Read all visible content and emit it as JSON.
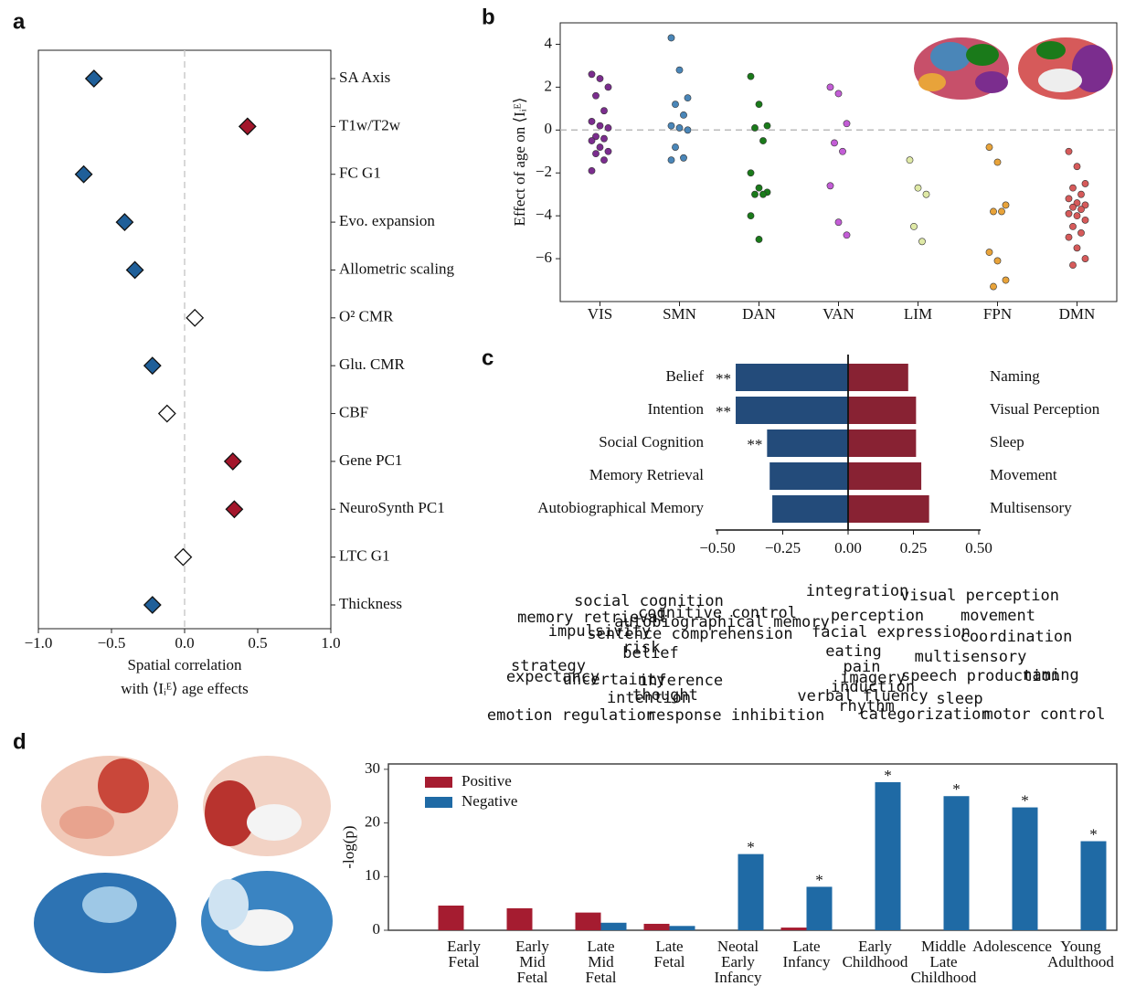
{
  "chart_data": [
    {
      "type": "scatter",
      "panel": "a",
      "categories": [
        "SA Axis",
        "T1w/T2w",
        "FC G1",
        "Evo. expansion",
        "Allometric scaling",
        "O² CMR",
        "Glu. CMR",
        "CBF",
        "Gene PC1",
        "NeuroSynth PC1",
        "LTC G1",
        "Thickness"
      ],
      "values": [
        -0.62,
        0.43,
        -0.69,
        -0.41,
        -0.34,
        0.07,
        -0.22,
        -0.12,
        0.33,
        0.34,
        -0.01,
        -0.22
      ],
      "colors": [
        "#1f5f99",
        "#a3162b",
        "#1f5f99",
        "#1f5f99",
        "#1f5f99",
        "#ffffff",
        "#1f5f99",
        "#ffffff",
        "#a3162b",
        "#a3162b",
        "#ffffff",
        "#1f5f99"
      ],
      "xlim": [
        -1,
        1
      ],
      "xticks": [
        {
          "value": -1,
          "label": "−1.0"
        },
        {
          "value": -0.5,
          "label": "−0.5"
        },
        {
          "value": 0,
          "label": "0.0"
        },
        {
          "value": 0.5,
          "label": "0.5"
        },
        {
          "value": 1,
          "label": "1.0"
        }
      ],
      "xlabel": [
        "Spatial correlation",
        "with ⟨Iᵢᴱ⟩ age effects"
      ]
    },
    {
      "type": "strip",
      "panel": "b",
      "groups": [
        {
          "name": "VIS",
          "color": "#7b2d8e",
          "values": [
            2.6,
            2.4,
            2.0,
            1.6,
            0.9,
            0.4,
            0.2,
            0.1,
            -0.3,
            -0.4,
            -0.5,
            -0.8,
            -1.0,
            -1.1,
            -1.4,
            -1.9
          ]
        },
        {
          "name": "SMN",
          "color": "#4a86b8",
          "values": [
            4.3,
            2.8,
            1.5,
            1.2,
            0.7,
            0.2,
            0.1,
            0.0,
            -0.8,
            -1.3,
            -1.4
          ]
        },
        {
          "name": "DAN",
          "color": "#1a7a1a",
          "values": [
            2.5,
            1.2,
            0.2,
            0.1,
            -0.5,
            -2.0,
            -2.7,
            -2.9,
            -3.0,
            -3.0,
            -4.0,
            -5.1
          ]
        },
        {
          "name": "VAN",
          "color": "#c35dd6",
          "values": [
            2.0,
            1.7,
            0.3,
            -0.6,
            -1.0,
            -2.6,
            -4.3,
            -4.9
          ]
        },
        {
          "name": "LIM",
          "color": "#dfe9a6",
          "values": [
            -1.4,
            -2.7,
            -3.0,
            -4.5,
            -5.2
          ]
        },
        {
          "name": "FPN",
          "color": "#e8a33a",
          "values": [
            -0.8,
            -1.5,
            -3.5,
            -3.8,
            -3.8,
            -5.7,
            -6.1,
            -7.0,
            -7.3
          ]
        },
        {
          "name": "DMN",
          "color": "#d65a5a",
          "values": [
            -1.0,
            -1.7,
            -2.5,
            -2.7,
            -3.0,
            -3.2,
            -3.4,
            -3.5,
            -3.6,
            -3.7,
            -3.9,
            -4.0,
            -4.2,
            -4.5,
            -4.8,
            -5.0,
            -5.5,
            -6.0,
            -6.3
          ]
        }
      ],
      "ylim": [
        -8,
        5
      ],
      "yticks": [
        {
          "value": -6,
          "label": "−6"
        },
        {
          "value": -4,
          "label": "−4"
        },
        {
          "value": -2,
          "label": "−2"
        },
        0,
        2,
        4
      ],
      "ylabel": "Effect of age on ⟨Iᵢᴱ⟩"
    },
    {
      "type": "diverging_bar",
      "panel": "c",
      "negative": {
        "categories": [
          "Belief",
          "Intention",
          "Social Cognition",
          "Memory Retrieval",
          "Autobiographical Memory"
        ],
        "values": [
          -0.43,
          -0.43,
          -0.31,
          -0.3,
          -0.29
        ],
        "color": "#234b7a",
        "significant": [
          true,
          true,
          true,
          false,
          false
        ]
      },
      "positive": {
        "categories": [
          "Naming",
          "Visual Perception",
          "Sleep",
          "Movement",
          "Multisensory"
        ],
        "values": [
          0.23,
          0.26,
          0.26,
          0.28,
          0.31
        ],
        "color": "#882233"
      },
      "significance_marker": "**",
      "xlim": [
        -0.5,
        0.5
      ],
      "xticks": [
        {
          "value": -0.5,
          "label": "−0.50"
        },
        {
          "value": -0.25,
          "label": "−0.25"
        },
        {
          "value": 0,
          "label": "0.00"
        },
        {
          "value": 0.25,
          "label": "0.25"
        },
        {
          "value": 0.5,
          "label": "0.50"
        }
      ],
      "wordclouds": {
        "negative": [
          "belief",
          "intention",
          "social cognition",
          "memory retrieval",
          "autobiographical memory",
          "impulsivity",
          "cognitive control",
          "sentence comprehension",
          "risk",
          "uncertainty",
          "inference",
          "emotion regulation",
          "response inhibition",
          "expectancy",
          "thought",
          "strategy"
        ],
        "positive": [
          "multisensory",
          "movement",
          "visual perception",
          "perception",
          "coordination",
          "facial expression",
          "speech production",
          "naming",
          "rhythm",
          "sleep",
          "motor control",
          "categorization",
          "imagery",
          "induction",
          "pain",
          "eating",
          "verbal fluency",
          "integration"
        ]
      }
    },
    {
      "type": "bar",
      "panel": "d",
      "categories": [
        [
          "Early",
          "Fetal"
        ],
        [
          "Early",
          "Mid",
          "Fetal"
        ],
        [
          "Late",
          "Mid",
          "Fetal"
        ],
        [
          "Late",
          "Fetal"
        ],
        [
          "Neotal",
          "Early",
          "Infancy"
        ],
        [
          "Late",
          "Infancy"
        ],
        [
          "Early",
          "Childhood"
        ],
        [
          "Middle",
          "Late",
          "Childhood"
        ],
        [
          "Adolescence"
        ],
        [
          "Young",
          "Adulthood"
        ]
      ],
      "series": [
        {
          "name": "Positive",
          "color": "#a51c30",
          "values": [
            4.6,
            4.1,
            3.3,
            1.2,
            0,
            0.5,
            0,
            0,
            0,
            0
          ]
        },
        {
          "name": "Negative",
          "color": "#1f6aa5",
          "values": [
            0,
            0,
            1.4,
            0.8,
            14.2,
            8.1,
            27.6,
            25.0,
            22.9,
            16.6
          ],
          "significant": [
            false,
            false,
            false,
            false,
            true,
            true,
            true,
            true,
            true,
            true
          ]
        }
      ],
      "significance_marker": "*",
      "ylim": [
        0,
        31
      ],
      "yticks": [
        0,
        10,
        20,
        30
      ],
      "ylabel": "-log(p)",
      "legend": "upper left"
    }
  ]
}
